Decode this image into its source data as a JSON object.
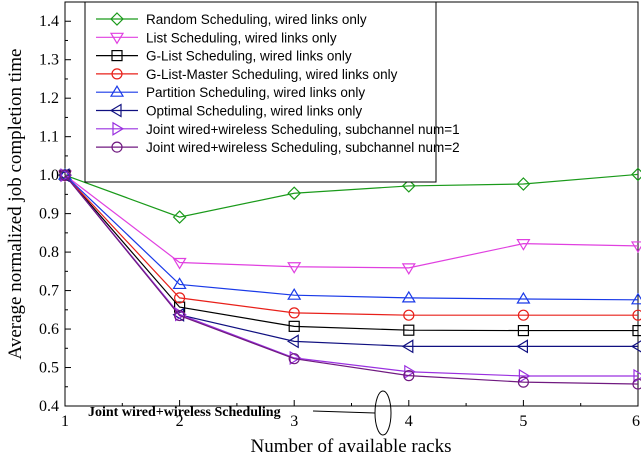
{
  "chart_data": {
    "type": "line",
    "xlabel": "Number of available racks",
    "ylabel": "Average normalized job completion time",
    "xlim": [
      1,
      6
    ],
    "ylim": [
      0.4,
      1.45
    ],
    "x": [
      1,
      2,
      3,
      4,
      5,
      6
    ],
    "xticks": [
      "1",
      "2",
      "3",
      "4",
      "5",
      "6"
    ],
    "yticks": [
      "0.4",
      "0.5",
      "0.6",
      "0.7",
      "0.8",
      "0.9",
      "1.0",
      "1.1",
      "1.2",
      "1.3",
      "1.4"
    ],
    "grid": false,
    "legend_position": "top-left",
    "series": [
      {
        "name": "Random Scheduling, wired links only",
        "color": "#1a9a1a",
        "marker": "diamond",
        "values": [
          1.0,
          0.891,
          0.953,
          0.972,
          0.977,
          1.002
        ]
      },
      {
        "name": "List Scheduling, wired links only",
        "color": "#e040e0",
        "marker": "triangle-down",
        "values": [
          1.0,
          0.773,
          0.762,
          0.759,
          0.822,
          0.816
        ]
      },
      {
        "name": "G-List Scheduling, wired links only",
        "color": "#000000",
        "marker": "square",
        "values": [
          1.0,
          0.657,
          0.607,
          0.597,
          0.596,
          0.596
        ]
      },
      {
        "name": "G-List-Master Scheduling, wired links only",
        "color": "#e8201a",
        "marker": "circle",
        "values": [
          1.0,
          0.681,
          0.642,
          0.636,
          0.636,
          0.636
        ]
      },
      {
        "name": "Partition Scheduling, wired links only",
        "color": "#1a3ae8",
        "marker": "triangle-up",
        "values": [
          1.0,
          0.716,
          0.688,
          0.681,
          0.678,
          0.676
        ]
      },
      {
        "name": "Optimal Scheduling, wired links only",
        "color": "#101080",
        "marker": "triangle-left",
        "values": [
          1.0,
          0.637,
          0.568,
          0.555,
          0.555,
          0.555
        ]
      },
      {
        "name": "Joint wired+wireless Scheduling, subchannel num=1",
        "color": "#9a30e0",
        "marker": "triangle-right",
        "values": [
          1.0,
          0.638,
          0.525,
          0.489,
          0.478,
          0.478
        ]
      },
      {
        "name": "Joint wired+wireless Scheduling, subchannel num=2",
        "color": "#701a80",
        "marker": "circle",
        "values": [
          1.0,
          0.635,
          0.523,
          0.479,
          0.462,
          0.457
        ]
      }
    ],
    "annotation": {
      "text": "Joint wired+wireless Scheduling",
      "target_x": 4,
      "target_y": 0.483
    }
  }
}
